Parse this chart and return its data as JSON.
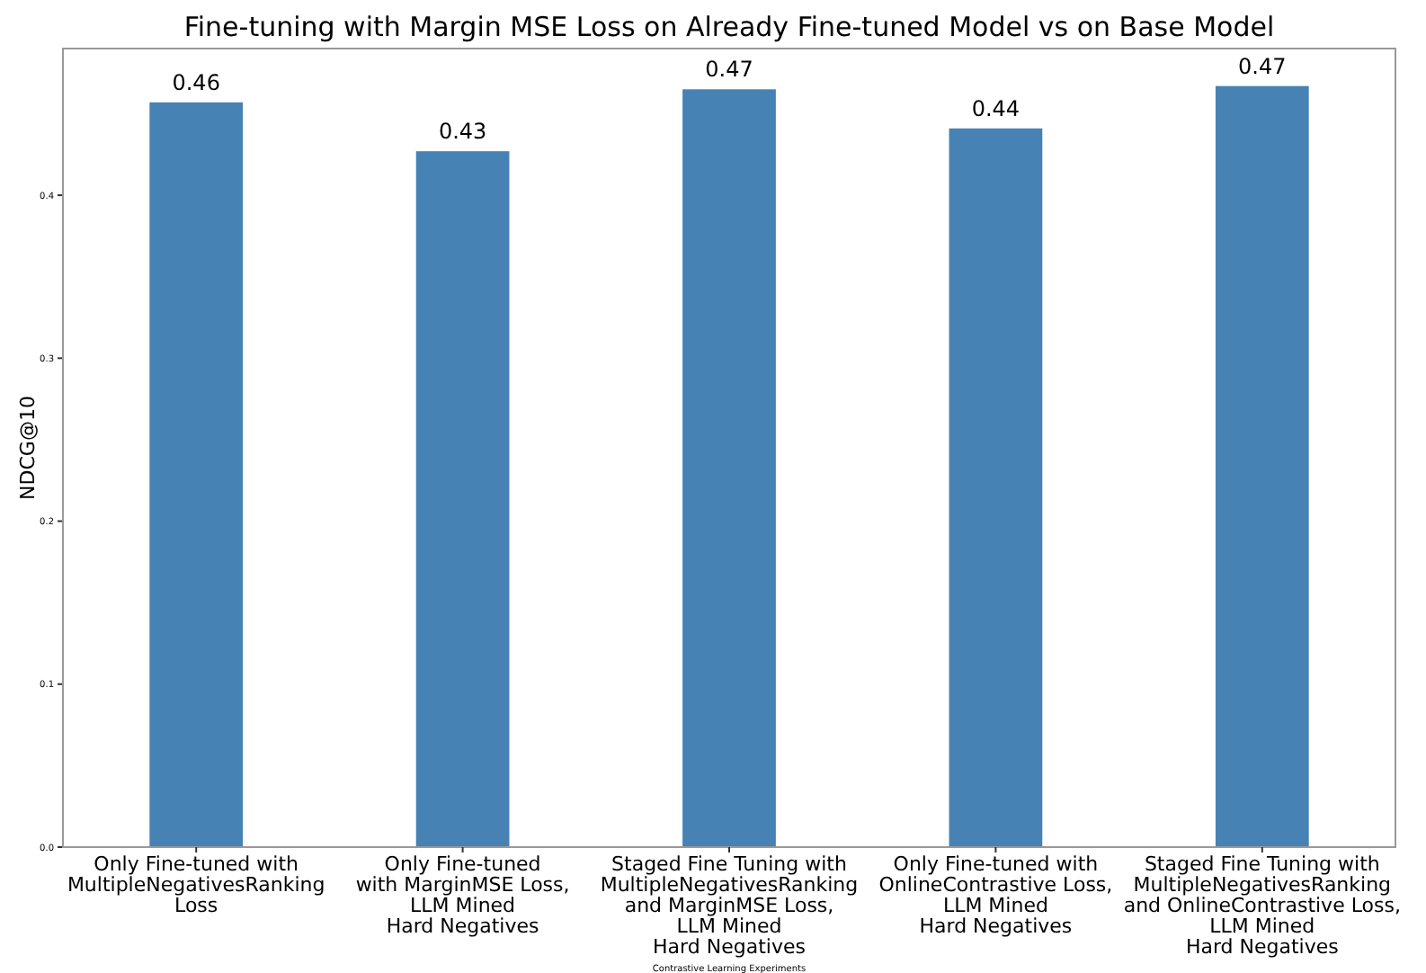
{
  "chart_data": {
    "type": "bar",
    "title": "Fine-tuning with Margin MSE Loss on Already Fine-tuned Model vs on Base Model",
    "xlabel": "Contrastive Learning Experiments",
    "ylabel": "NDCG@10",
    "categories": [
      "Only Fine-tuned with\nMultipleNegativesRanking\nLoss",
      "Only Fine-tuned\nwith MarginMSE Loss,\nLLM Mined\nHard Negatives",
      "Staged Fine Tuning with\nMultipleNegativesRanking\nand MarginMSE Loss,\nLLM Mined\nHard Negatives",
      "Only Fine-tuned with\nOnlineContrastive Loss,\nLLM Mined\nHard Negatives",
      "Staged Fine Tuning with\nMultipleNegativesRanking\nand OnlineContrastive Loss,\nLLM Mined\nHard Negatives"
    ],
    "values": [
      0.457,
      0.427,
      0.465,
      0.441,
      0.467
    ],
    "value_labels": [
      "0.46",
      "0.43",
      "0.47",
      "0.44",
      "0.47"
    ],
    "color": "#4682b4",
    "ylim": [
      0,
      0.49
    ],
    "yticks": [
      {
        "value": 0,
        "label": "0.0"
      },
      {
        "value": 0.1,
        "label": "0.1"
      },
      {
        "value": 0.2,
        "label": "0.2"
      },
      {
        "value": 0.3,
        "label": "0.3"
      },
      {
        "value": 0.4,
        "label": "0.4"
      }
    ]
  }
}
